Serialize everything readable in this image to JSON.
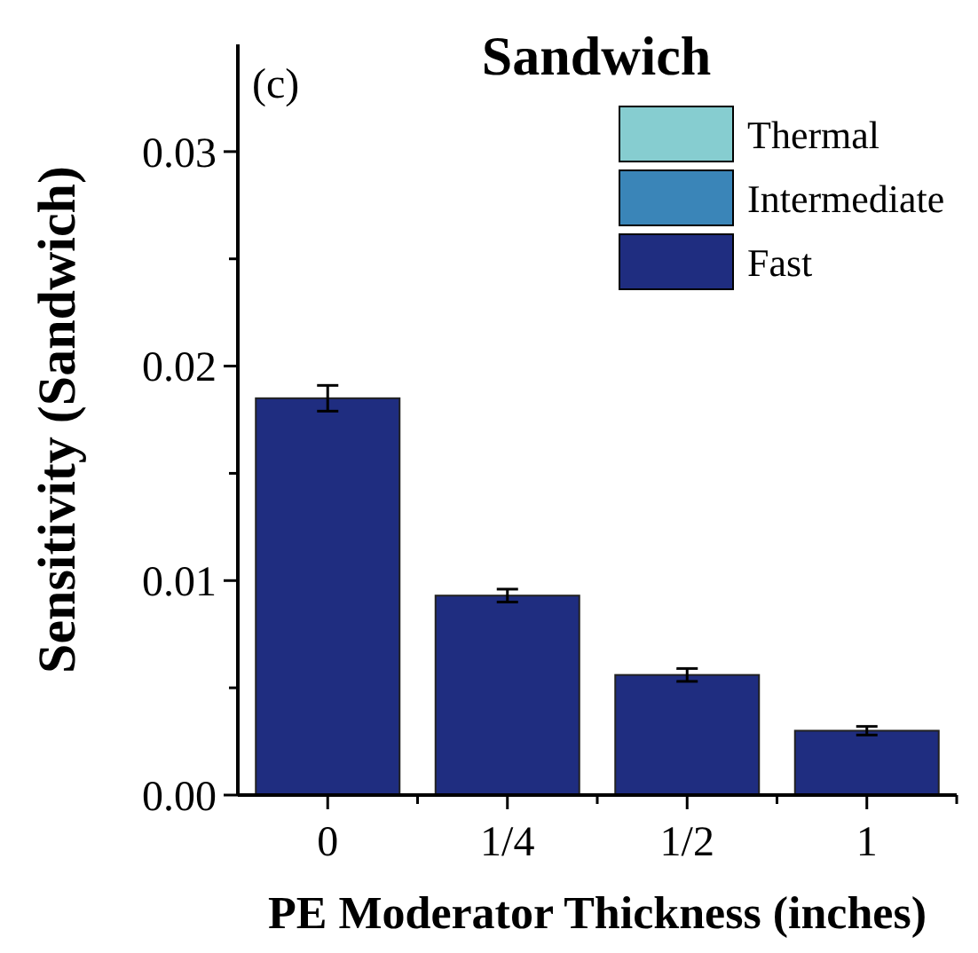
{
  "chart_data": {
    "type": "bar",
    "title": "Sandwich",
    "xlabel": "PE Moderator Thickness (inches)",
    "ylabel": "Sensitivity (Sandwich)",
    "annotations": [
      "(c)"
    ],
    "categories": [
      "0",
      "1/4",
      "1/2",
      "1"
    ],
    "series": [
      {
        "name": "Fast",
        "color": "#1f2d80",
        "values": [
          0.0185,
          0.0093,
          0.0056,
          0.003
        ],
        "errors": [
          0.0006,
          0.0003,
          0.0003,
          0.0002
        ]
      },
      {
        "name": "Intermediate",
        "color": "#3a85b8",
        "values": [
          null,
          null,
          null,
          null
        ]
      },
      {
        "name": "Thermal",
        "color": "#86cdd0",
        "values": [
          null,
          null,
          null,
          null
        ]
      }
    ],
    "ylim": [
      0,
      0.035
    ],
    "yticks": [
      {
        "value": 0,
        "label": "0.00"
      },
      {
        "value": 0.005,
        "label": null
      },
      0.01,
      {
        "value": 0.015,
        "label": null
      },
      0.02,
      {
        "value": 0.025,
        "label": null
      },
      0.03
    ],
    "grid": false,
    "legend": "top right"
  }
}
